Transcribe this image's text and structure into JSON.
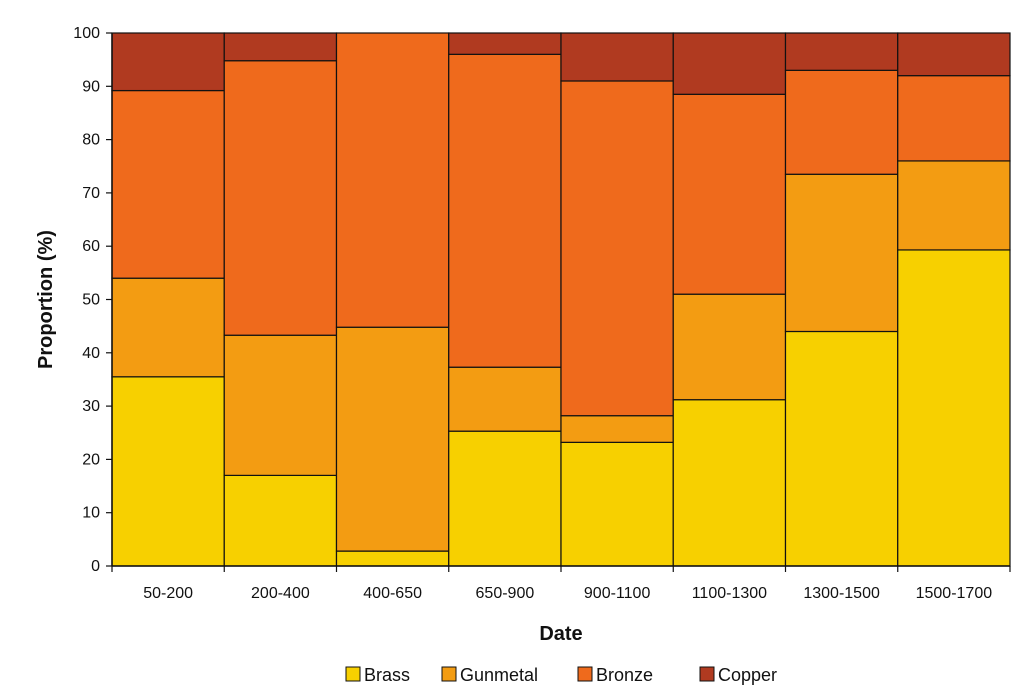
{
  "chart_data": {
    "type": "bar",
    "stacked": true,
    "categories": [
      "50-200",
      "200-400",
      "400-650",
      "650-900",
      "900-1100",
      "1100-1300",
      "1300-1500",
      "1500-1700"
    ],
    "series": [
      {
        "name": "Brass",
        "color": "#f7d000",
        "values": [
          35.5,
          17,
          2.8,
          25.3,
          23.2,
          31.2,
          44,
          59.3
        ]
      },
      {
        "name": "Gunmetal",
        "color": "#f39c12",
        "values": [
          18.5,
          26.3,
          42,
          12,
          5,
          19.8,
          29.5,
          16.7
        ]
      },
      {
        "name": "Bronze",
        "color": "#ef6a1c",
        "values": [
          35.2,
          51.5,
          55.2,
          58.7,
          62.8,
          37.5,
          19.5,
          16
        ]
      },
      {
        "name": "Copper",
        "color": "#b03a20",
        "values": [
          10.8,
          5.2,
          0,
          4,
          9,
          11.5,
          7,
          8
        ]
      }
    ],
    "xlabel": "Date",
    "ylabel": "Proportion (%)",
    "ylim": [
      0,
      100
    ],
    "yticks": [
      "0",
      "10",
      "20",
      "30",
      "40",
      "50",
      "60",
      "70",
      "80",
      "90",
      "100"
    ],
    "legend_position": "bottom",
    "grid": false
  }
}
